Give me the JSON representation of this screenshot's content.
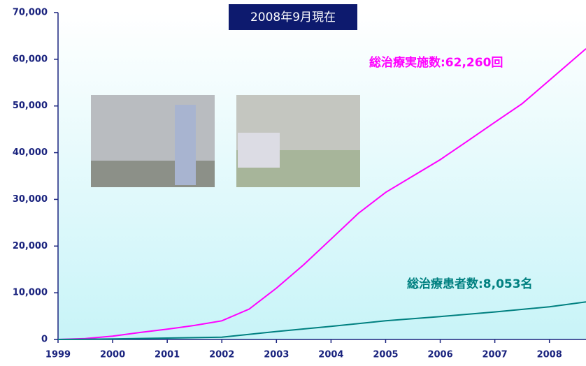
{
  "chart_data": {
    "type": "line",
    "annotations": [
      "2008年9月現在",
      "総治療実施数:62,260回",
      "総治療患者数:8,053名"
    ],
    "series": [
      {
        "color": "#ff00ff",
        "x": [
          1999,
          1999.5,
          2000,
          2000.5,
          2001,
          2001.5,
          2002,
          2002.5,
          2003,
          2003.5,
          2004,
          2004.5,
          2005,
          2005.5,
          2006,
          2006.5,
          2007,
          2007.5,
          2008,
          2008.67
        ],
        "values": [
          0,
          200,
          700,
          1500,
          2200,
          3000,
          4000,
          6500,
          11000,
          16000,
          21500,
          27000,
          31500,
          35000,
          38500,
          42500,
          46500,
          50500,
          55500,
          62260
        ]
      },
      {
        "color": "#008080",
        "x": [
          1999,
          2000,
          2001,
          2002,
          2003,
          2004,
          2005,
          2006,
          2007,
          2008,
          2008.67
        ],
        "values": [
          0,
          100,
          300,
          500,
          1700,
          2800,
          4000,
          4900,
          5900,
          7000,
          8053
        ]
      }
    ],
    "xlim": [
      1999,
      2008.67
    ],
    "xticks": [
      1999,
      2000,
      2001,
      2002,
      2003,
      2004,
      2005,
      2006,
      2007,
      2008
    ],
    "ylim": [
      0,
      70000
    ],
    "yticks": [
      0,
      {
        "value": 10000,
        "label": "10,000"
      },
      {
        "value": 20000,
        "label": "20,000"
      },
      {
        "value": 30000,
        "label": "30,000"
      },
      {
        "value": 40000,
        "label": "40,000"
      },
      {
        "value": 50000,
        "label": "50,000"
      },
      {
        "value": 60000,
        "label": "60,000"
      },
      {
        "value": 70000,
        "label": "70,000"
      }
    ]
  }
}
